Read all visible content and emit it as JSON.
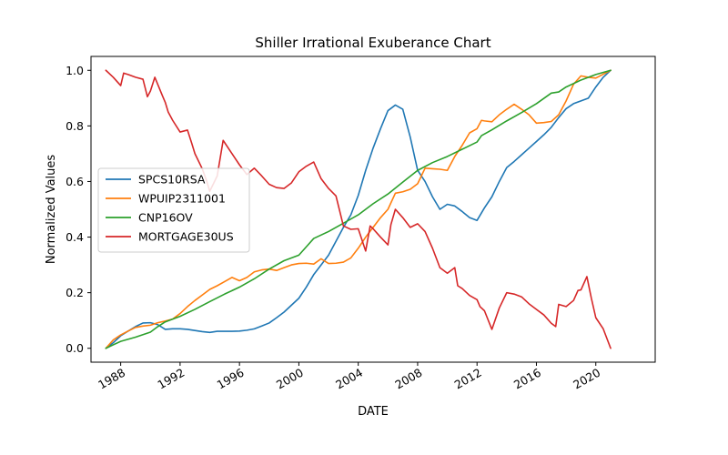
{
  "chart_data": {
    "type": "line",
    "title": "Shiller Irrational Exuberance Chart",
    "xlabel": "DATE",
    "ylabel": "Normalized Values",
    "xlim": [
      1986.0,
      2024.0
    ],
    "ylim": [
      -0.05,
      1.05
    ],
    "x_ticks": [
      1988,
      1992,
      1996,
      2000,
      2004,
      2008,
      2012,
      2016,
      2020
    ],
    "x_tick_labels": [
      "1988",
      "1992",
      "1996",
      "2000",
      "2004",
      "2008",
      "2012",
      "2016",
      "2020"
    ],
    "y_ticks": [
      0.0,
      0.2,
      0.4,
      0.6,
      0.8,
      1.0
    ],
    "y_tick_labels": [
      "0.0",
      "0.2",
      "0.4",
      "0.6",
      "0.8",
      "1.0"
    ],
    "grid": false,
    "legend_position": "center-left",
    "series": [
      {
        "name": "SPCS10RSA",
        "color": "#1f77b4",
        "points": [
          [
            1987.0,
            0.0
          ],
          [
            1987.5,
            0.02
          ],
          [
            1988.0,
            0.045
          ],
          [
            1988.5,
            0.062
          ],
          [
            1989.0,
            0.078
          ],
          [
            1989.5,
            0.091
          ],
          [
            1990.0,
            0.092
          ],
          [
            1990.5,
            0.085
          ],
          [
            1991.0,
            0.068
          ],
          [
            1991.5,
            0.07
          ],
          [
            1992.0,
            0.07
          ],
          [
            1992.5,
            0.068
          ],
          [
            1993.0,
            0.064
          ],
          [
            1993.5,
            0.06
          ],
          [
            1994.0,
            0.057
          ],
          [
            1994.5,
            0.061
          ],
          [
            1995.0,
            0.061
          ],
          [
            1995.5,
            0.061
          ],
          [
            1996.0,
            0.062
          ],
          [
            1996.5,
            0.065
          ],
          [
            1997.0,
            0.07
          ],
          [
            1997.5,
            0.08
          ],
          [
            1998.0,
            0.091
          ],
          [
            1998.5,
            0.11
          ],
          [
            1999.0,
            0.13
          ],
          [
            1999.5,
            0.155
          ],
          [
            2000.0,
            0.18
          ],
          [
            2000.5,
            0.22
          ],
          [
            2001.0,
            0.265
          ],
          [
            2001.5,
            0.3
          ],
          [
            2002.0,
            0.335
          ],
          [
            2002.5,
            0.385
          ],
          [
            2003.0,
            0.435
          ],
          [
            2003.5,
            0.48
          ],
          [
            2004.0,
            0.55
          ],
          [
            2004.5,
            0.64
          ],
          [
            2005.0,
            0.72
          ],
          [
            2005.5,
            0.79
          ],
          [
            2006.0,
            0.855
          ],
          [
            2006.5,
            0.875
          ],
          [
            2007.0,
            0.86
          ],
          [
            2007.5,
            0.76
          ],
          [
            2008.0,
            0.64
          ],
          [
            2008.5,
            0.6
          ],
          [
            2009.0,
            0.545
          ],
          [
            2009.5,
            0.5
          ],
          [
            2010.0,
            0.518
          ],
          [
            2010.5,
            0.512
          ],
          [
            2011.0,
            0.492
          ],
          [
            2011.5,
            0.47
          ],
          [
            2012.0,
            0.46
          ],
          [
            2012.5,
            0.505
          ],
          [
            2013.0,
            0.545
          ],
          [
            2013.5,
            0.6
          ],
          [
            2014.0,
            0.65
          ],
          [
            2014.5,
            0.672
          ],
          [
            2015.0,
            0.696
          ],
          [
            2015.5,
            0.72
          ],
          [
            2016.0,
            0.744
          ],
          [
            2016.5,
            0.768
          ],
          [
            2017.0,
            0.795
          ],
          [
            2017.5,
            0.83
          ],
          [
            2018.0,
            0.862
          ],
          [
            2018.5,
            0.88
          ],
          [
            2019.0,
            0.89
          ],
          [
            2019.5,
            0.9
          ],
          [
            2020.0,
            0.94
          ],
          [
            2020.5,
            0.975
          ],
          [
            2021.0,
            1.0
          ]
        ]
      },
      {
        "name": "WPUIP2311001",
        "color": "#ff7f0e",
        "points": [
          [
            1987.0,
            0.0
          ],
          [
            1987.5,
            0.03
          ],
          [
            1988.0,
            0.048
          ],
          [
            1988.5,
            0.062
          ],
          [
            1989.0,
            0.075
          ],
          [
            1989.5,
            0.08
          ],
          [
            1990.0,
            0.083
          ],
          [
            1990.5,
            0.092
          ],
          [
            1991.0,
            0.098
          ],
          [
            1991.5,
            0.105
          ],
          [
            1992.0,
            0.125
          ],
          [
            1992.5,
            0.15
          ],
          [
            1993.0,
            0.172
          ],
          [
            1993.5,
            0.192
          ],
          [
            1994.0,
            0.212
          ],
          [
            1994.5,
            0.225
          ],
          [
            1995.0,
            0.24
          ],
          [
            1995.5,
            0.255
          ],
          [
            1996.0,
            0.243
          ],
          [
            1996.5,
            0.255
          ],
          [
            1997.0,
            0.275
          ],
          [
            1997.5,
            0.282
          ],
          [
            1998.0,
            0.285
          ],
          [
            1998.5,
            0.28
          ],
          [
            1999.0,
            0.29
          ],
          [
            1999.5,
            0.3
          ],
          [
            2000.0,
            0.305
          ],
          [
            2000.5,
            0.306
          ],
          [
            2001.0,
            0.303
          ],
          [
            2001.5,
            0.322
          ],
          [
            2002.0,
            0.305
          ],
          [
            2002.5,
            0.306
          ],
          [
            2003.0,
            0.31
          ],
          [
            2003.5,
            0.325
          ],
          [
            2004.0,
            0.36
          ],
          [
            2004.5,
            0.4
          ],
          [
            2005.0,
            0.435
          ],
          [
            2005.5,
            0.47
          ],
          [
            2006.0,
            0.5
          ],
          [
            2006.5,
            0.558
          ],
          [
            2007.0,
            0.563
          ],
          [
            2007.5,
            0.572
          ],
          [
            2008.0,
            0.592
          ],
          [
            2008.5,
            0.648
          ],
          [
            2009.0,
            0.646
          ],
          [
            2009.5,
            0.644
          ],
          [
            2010.0,
            0.64
          ],
          [
            2010.5,
            0.69
          ],
          [
            2011.0,
            0.73
          ],
          [
            2011.5,
            0.775
          ],
          [
            2012.0,
            0.79
          ],
          [
            2012.3,
            0.82
          ],
          [
            2012.5,
            0.818
          ],
          [
            2013.0,
            0.815
          ],
          [
            2013.5,
            0.84
          ],
          [
            2014.0,
            0.86
          ],
          [
            2014.5,
            0.878
          ],
          [
            2015.0,
            0.86
          ],
          [
            2015.5,
            0.84
          ],
          [
            2016.0,
            0.81
          ],
          [
            2016.5,
            0.812
          ],
          [
            2017.0,
            0.816
          ],
          [
            2017.5,
            0.84
          ],
          [
            2018.0,
            0.89
          ],
          [
            2018.5,
            0.95
          ],
          [
            2019.0,
            0.98
          ],
          [
            2019.5,
            0.975
          ],
          [
            2020.0,
            0.972
          ],
          [
            2020.5,
            0.986
          ],
          [
            2021.0,
            1.0
          ]
        ]
      },
      {
        "name": "CNP16OV",
        "color": "#2ca02c",
        "points": [
          [
            1987.0,
            0.0
          ],
          [
            1988.0,
            0.025
          ],
          [
            1989.0,
            0.04
          ],
          [
            1990.0,
            0.058
          ],
          [
            1990.5,
            0.078
          ],
          [
            1991.0,
            0.095
          ],
          [
            1992.0,
            0.115
          ],
          [
            1993.0,
            0.14
          ],
          [
            1994.0,
            0.168
          ],
          [
            1995.0,
            0.195
          ],
          [
            1996.0,
            0.22
          ],
          [
            1997.0,
            0.25
          ],
          [
            1998.0,
            0.285
          ],
          [
            1999.0,
            0.315
          ],
          [
            2000.0,
            0.335
          ],
          [
            2000.5,
            0.365
          ],
          [
            2001.0,
            0.395
          ],
          [
            2002.0,
            0.42
          ],
          [
            2003.0,
            0.45
          ],
          [
            2004.0,
            0.48
          ],
          [
            2005.0,
            0.52
          ],
          [
            2006.0,
            0.555
          ],
          [
            2007.0,
            0.598
          ],
          [
            2008.0,
            0.64
          ],
          [
            2009.0,
            0.668
          ],
          [
            2010.0,
            0.69
          ],
          [
            2011.0,
            0.716
          ],
          [
            2012.0,
            0.742
          ],
          [
            2012.3,
            0.765
          ],
          [
            2013.0,
            0.786
          ],
          [
            2014.0,
            0.818
          ],
          [
            2015.0,
            0.848
          ],
          [
            2016.0,
            0.88
          ],
          [
            2017.0,
            0.918
          ],
          [
            2017.5,
            0.922
          ],
          [
            2018.0,
            0.94
          ],
          [
            2019.0,
            0.965
          ],
          [
            2020.0,
            0.985
          ],
          [
            2021.0,
            1.0
          ]
        ]
      },
      {
        "name": "MORTGAGE30US",
        "color": "#d62728",
        "points": [
          [
            1987.0,
            1.0
          ],
          [
            1987.5,
            0.975
          ],
          [
            1988.0,
            0.945
          ],
          [
            1988.2,
            0.99
          ],
          [
            1988.5,
            0.985
          ],
          [
            1989.0,
            0.975
          ],
          [
            1989.5,
            0.968
          ],
          [
            1989.8,
            0.905
          ],
          [
            1990.0,
            0.925
          ],
          [
            1990.3,
            0.975
          ],
          [
            1990.8,
            0.91
          ],
          [
            1991.0,
            0.885
          ],
          [
            1991.2,
            0.85
          ],
          [
            1991.5,
            0.82
          ],
          [
            1992.0,
            0.778
          ],
          [
            1992.5,
            0.785
          ],
          [
            1992.8,
            0.735
          ],
          [
            1993.0,
            0.7
          ],
          [
            1993.5,
            0.645
          ],
          [
            1993.8,
            0.6
          ],
          [
            1994.0,
            0.565
          ],
          [
            1994.5,
            0.62
          ],
          [
            1994.9,
            0.748
          ],
          [
            1995.5,
            0.7
          ],
          [
            1996.0,
            0.66
          ],
          [
            1996.5,
            0.625
          ],
          [
            1997.0,
            0.648
          ],
          [
            1997.5,
            0.62
          ],
          [
            1998.0,
            0.59
          ],
          [
            1998.5,
            0.578
          ],
          [
            1999.0,
            0.575
          ],
          [
            1999.5,
            0.595
          ],
          [
            2000.0,
            0.635
          ],
          [
            2000.5,
            0.655
          ],
          [
            2001.0,
            0.67
          ],
          [
            2001.5,
            0.61
          ],
          [
            2002.0,
            0.575
          ],
          [
            2002.5,
            0.548
          ],
          [
            2003.0,
            0.44
          ],
          [
            2003.5,
            0.428
          ],
          [
            2004.0,
            0.43
          ],
          [
            2004.5,
            0.35
          ],
          [
            2004.8,
            0.44
          ],
          [
            2005.0,
            0.43
          ],
          [
            2005.5,
            0.4
          ],
          [
            2006.0,
            0.372
          ],
          [
            2006.2,
            0.445
          ],
          [
            2006.5,
            0.5
          ],
          [
            2007.0,
            0.47
          ],
          [
            2007.5,
            0.435
          ],
          [
            2008.0,
            0.448
          ],
          [
            2008.5,
            0.42
          ],
          [
            2009.0,
            0.36
          ],
          [
            2009.5,
            0.29
          ],
          [
            2010.0,
            0.27
          ],
          [
            2010.5,
            0.29
          ],
          [
            2010.7,
            0.225
          ],
          [
            2011.0,
            0.215
          ],
          [
            2011.5,
            0.19
          ],
          [
            2012.0,
            0.175
          ],
          [
            2012.2,
            0.15
          ],
          [
            2012.5,
            0.135
          ],
          [
            2013.0,
            0.068
          ],
          [
            2013.5,
            0.145
          ],
          [
            2014.0,
            0.2
          ],
          [
            2014.5,
            0.195
          ],
          [
            2015.0,
            0.185
          ],
          [
            2015.5,
            0.16
          ],
          [
            2016.0,
            0.14
          ],
          [
            2016.5,
            0.12
          ],
          [
            2017.0,
            0.09
          ],
          [
            2017.3,
            0.078
          ],
          [
            2017.5,
            0.158
          ],
          [
            2018.0,
            0.15
          ],
          [
            2018.5,
            0.172
          ],
          [
            2018.8,
            0.208
          ],
          [
            2019.0,
            0.21
          ],
          [
            2019.4,
            0.258
          ],
          [
            2019.7,
            0.18
          ],
          [
            2020.0,
            0.11
          ],
          [
            2020.5,
            0.07
          ],
          [
            2021.0,
            0.0
          ]
        ]
      }
    ]
  }
}
